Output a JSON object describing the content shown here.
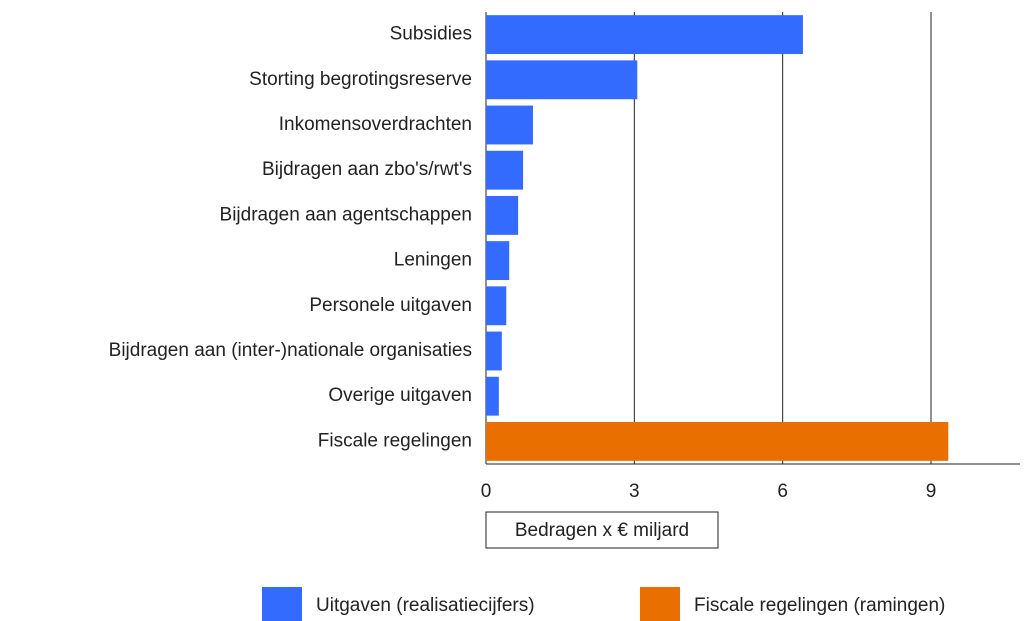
{
  "chart_data": {
    "type": "barh",
    "categories": [
      "Subsidies",
      "Storting begrotingsreserve",
      "Inkomensoverdrachten",
      "Bijdragen aan zbo's/rwt's",
      "Bijdragen aan agentschappen",
      "Leningen",
      "Personele uitgaven",
      "Bijdragen aan (inter-)nationale organisaties",
      "Overige uitgaven",
      "Fiscale regelingen"
    ],
    "series": [
      {
        "name": "Uitgaven (realisatiecijfers)",
        "color": "#336bff",
        "values": [
          6.41,
          3.06,
          0.95,
          0.75,
          0.65,
          0.47,
          0.41,
          0.32,
          0.26,
          null
        ]
      },
      {
        "name": "Fiscale regelingen (ramingen)",
        "color": "#e86f00",
        "values": [
          null,
          null,
          null,
          null,
          null,
          null,
          null,
          null,
          null,
          9.35
        ]
      }
    ],
    "x_label": "Bedragen x € miljard",
    "xlim": [
      0,
      10.8
    ],
    "xticks": [
      0,
      3,
      6,
      9
    ],
    "grid": true,
    "legend": "bottom"
  }
}
